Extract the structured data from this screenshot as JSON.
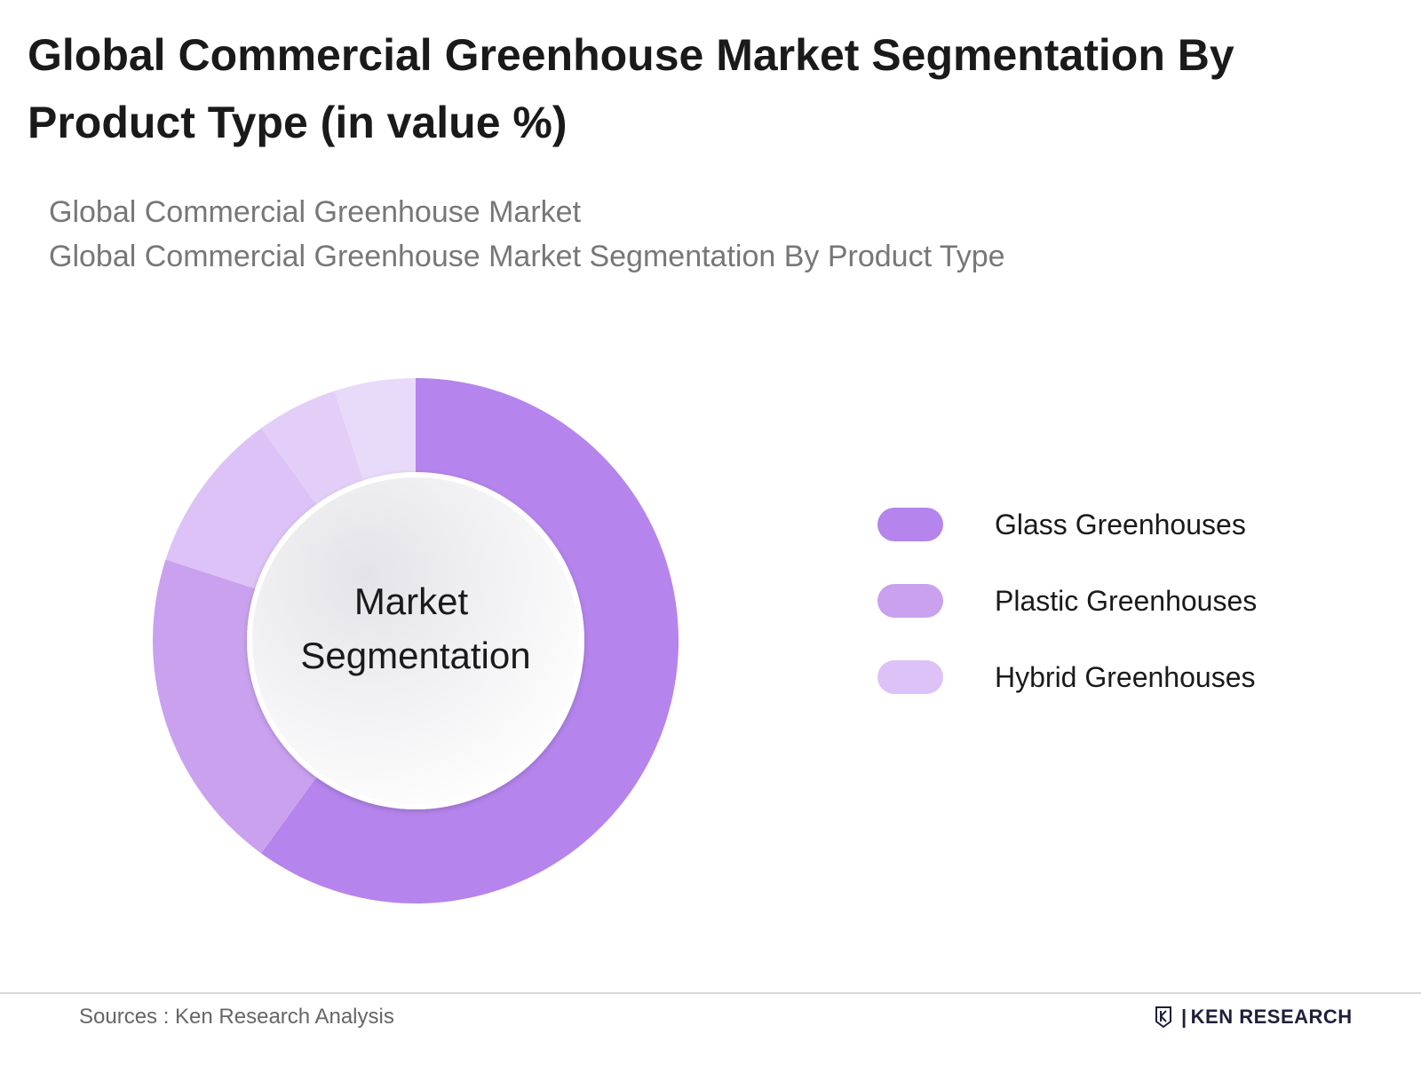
{
  "title": "Global Commercial Greenhouse Market Segmentation By Product Type (in value %)",
  "subtitle_lines": [
    "Global Commercial Greenhouse Market",
    "Global Commercial Greenhouse Market Segmentation By Product Type"
  ],
  "center_label": [
    "Market",
    "Segmentation"
  ],
  "chart_data": {
    "type": "pie",
    "style": "donut",
    "categories": [
      "Glass Greenhouses",
      "Plastic Greenhouses",
      "Hybrid Greenhouses"
    ],
    "values": [
      60,
      20,
      10
    ],
    "legend": {
      "placement": "right"
    }
  },
  "colors": {
    "glass": "#b584ec",
    "plastic": "#c9a1ef",
    "hybrid": "#dcc2f6",
    "extra": "#e8daf9"
  },
  "footer": {
    "source": "Sources : Ken Research Analysis",
    "brand_k": "K",
    "brand": "KEN RESEARCH"
  }
}
